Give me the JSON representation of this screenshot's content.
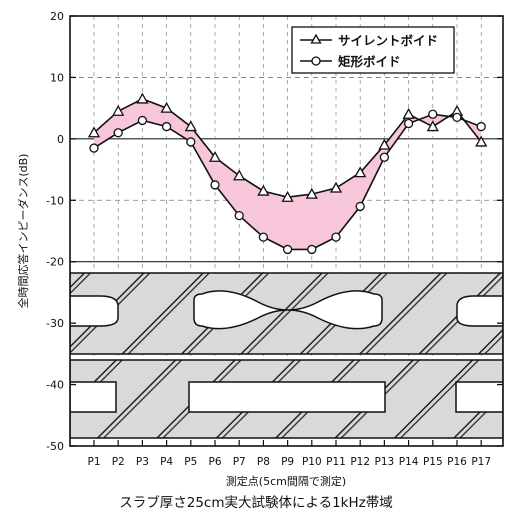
{
  "chart_data": {
    "type": "line",
    "title": "",
    "caption": "スラブ厚さ25cm実大試験体による1kHz帯域",
    "xlabel": "測定点(5cm間隔で測定)",
    "ylabel": "全時間応答インピーダンス(dB)",
    "ylim": [
      -50,
      20
    ],
    "yticks": [
      20,
      10,
      0,
      -10,
      -20,
      -30,
      -40,
      -50
    ],
    "categories": [
      "P1",
      "P2",
      "P3",
      "P4",
      "P5",
      "P6",
      "P7",
      "P8",
      "P9",
      "P10",
      "P11",
      "P12",
      "P13",
      "P14",
      "P15",
      "P16",
      "P17"
    ],
    "grid": true,
    "legend_position": "top-right",
    "fill_between_series": {
      "color": "#f7c6da"
    },
    "series": [
      {
        "name": "サイレントボイド",
        "marker": "triangle",
        "values": [
          1,
          4.5,
          6.5,
          5,
          2,
          -3,
          -6,
          -8.5,
          -9.5,
          -9,
          -8,
          -5.5,
          -1,
          4,
          2,
          4.5,
          -0.5
        ]
      },
      {
        "name": "矩形ボイド",
        "marker": "circle",
        "values": [
          -1.5,
          1,
          3,
          2,
          -0.5,
          -7.5,
          -12.5,
          -16,
          -18,
          -18,
          -16,
          -11,
          -3,
          2.5,
          4,
          3.5,
          2
        ]
      }
    ]
  }
}
